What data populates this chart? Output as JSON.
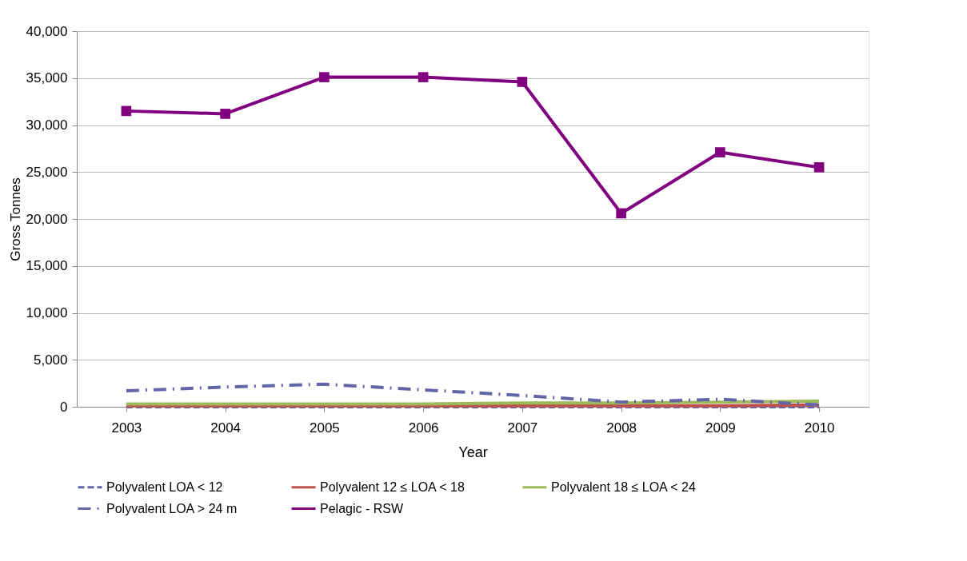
{
  "chart_data": {
    "type": "line",
    "xlabel": "Year",
    "ylabel": "Gross Tonnes",
    "categories": [
      "2003",
      "2004",
      "2005",
      "2006",
      "2007",
      "2008",
      "2009",
      "2010"
    ],
    "ylim": [
      0,
      40000
    ],
    "yticks": [
      {
        "value": 0,
        "label": "0"
      },
      {
        "value": 5000,
        "label": "5,000"
      },
      {
        "value": 10000,
        "label": "10,000"
      },
      {
        "value": 15000,
        "label": "15,000"
      },
      {
        "value": 20000,
        "label": "20,000"
      },
      {
        "value": 25000,
        "label": "25,000"
      },
      {
        "value": 30000,
        "label": "30,000"
      },
      {
        "value": 35000,
        "label": "35,000"
      },
      {
        "value": 40000,
        "label": "40,000"
      }
    ],
    "grid": "y",
    "legend": "bottom",
    "series": [
      {
        "name": "Polyvalent  LOA < 12",
        "color": "#6465a6",
        "line_style": "dashed",
        "marker": "none",
        "values": [
          0,
          0,
          0,
          0,
          0,
          0,
          0,
          0
        ]
      },
      {
        "name": "Polyvalent  12 ≤ LOA < 18",
        "color": "#c0504d",
        "line_style": "solid",
        "marker": "none",
        "values": [
          100,
          100,
          100,
          100,
          100,
          100,
          100,
          200
        ]
      },
      {
        "name": "Polyvalent  18 ≤ LOA < 24",
        "color": "#9bbb59",
        "line_style": "solid",
        "marker": "none",
        "values": [
          300,
          300,
          300,
          300,
          400,
          400,
          500,
          600
        ]
      },
      {
        "name": "Polyvalent LOA > 24 m",
        "color": "#6465a6",
        "line_style": "dashdot",
        "marker": "none",
        "values": [
          1700,
          2100,
          2400,
          1800,
          1200,
          500,
          800,
          200
        ]
      },
      {
        "name": "Pelagic - RSW",
        "color": "#800080",
        "line_style": "solid",
        "marker": "square",
        "values": [
          31500,
          31200,
          35100,
          35100,
          34600,
          20600,
          27100,
          25500
        ]
      }
    ]
  }
}
